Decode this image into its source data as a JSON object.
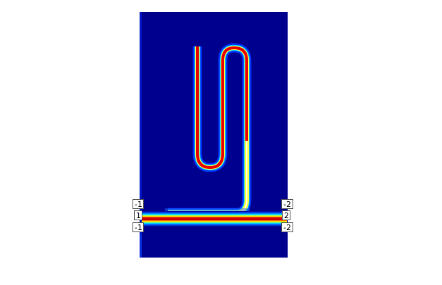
{
  "figure": {
    "colormap": "jet",
    "background_color": "#00008f",
    "page_color": "#ffffff"
  },
  "port_labels": {
    "left_top": "-1",
    "left_mid": "1",
    "left_bottom": "-1",
    "right_top": "-2",
    "right_mid": "2",
    "right_bottom": "-2"
  }
}
